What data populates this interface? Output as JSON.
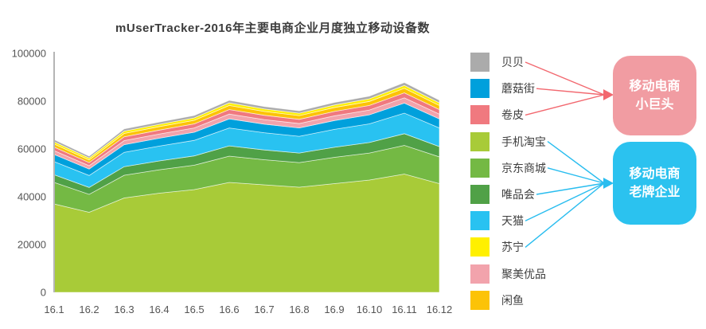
{
  "chart_data": {
    "type": "area",
    "stacked": true,
    "title": "mUserTracker-2016年主要电商企业月度独立移动设备数",
    "categories": [
      "16.1",
      "16.2",
      "16.3",
      "16.4",
      "16.5",
      "16.6",
      "16.7",
      "16.8",
      "16.9",
      "16.10",
      "16.11",
      "16.12"
    ],
    "ylim": [
      0,
      100000
    ],
    "yticks": [
      0,
      20000,
      40000,
      60000,
      80000,
      100000
    ],
    "grid": false,
    "legend_position": "right",
    "series": [
      {
        "name": "贝贝",
        "color": "#ABABAB",
        "values": [
          900,
          800,
          950,
          950,
          1000,
          1050,
          1000,
          1000,
          1050,
          1100,
          1200,
          1100
        ]
      },
      {
        "name": "蘑菇街",
        "color": "#00A0DC",
        "values": [
          3000,
          2700,
          3200,
          3300,
          3400,
          3800,
          3600,
          3500,
          3700,
          3800,
          4200,
          3800
        ]
      },
      {
        "name": "卷皮",
        "color": "#F0797F",
        "values": [
          1500,
          1300,
          1600,
          1650,
          1700,
          1900,
          1800,
          1750,
          1850,
          1900,
          2100,
          1900
        ]
      },
      {
        "name": "手机淘宝",
        "color": "#A8CB38",
        "values": [
          37000,
          33500,
          39500,
          41500,
          43000,
          46000,
          45000,
          44000,
          45500,
          47000,
          49500,
          45500
        ]
      },
      {
        "name": "京东商城",
        "color": "#74B944",
        "values": [
          9000,
          7500,
          9500,
          9800,
          10200,
          11000,
          10500,
          10300,
          11000,
          11300,
          12000,
          11200
        ]
      },
      {
        "name": "唯品会",
        "color": "#50A147",
        "values": [
          3200,
          2900,
          3600,
          3700,
          3900,
          4300,
          4100,
          4000,
          4200,
          4400,
          4900,
          4300
        ]
      },
      {
        "name": "天猫",
        "color": "#29C2F1",
        "values": [
          5500,
          5000,
          6000,
          6200,
          6500,
          7500,
          7200,
          7000,
          7500,
          7800,
          8600,
          7800
        ]
      },
      {
        "name": "苏宁",
        "color": "#FFF000",
        "values": [
          900,
          800,
          950,
          950,
          1000,
          1100,
          1050,
          1000,
          1050,
          1100,
          1200,
          1100
        ]
      },
      {
        "name": "聚美优品",
        "color": "#F2A3AC",
        "values": [
          1600,
          1400,
          1700,
          1750,
          1800,
          2000,
          1900,
          1850,
          1950,
          2000,
          2200,
          2000
        ]
      },
      {
        "name": "闲鱼",
        "color": "#FCC307",
        "values": [
          1300,
          1100,
          1400,
          1450,
          1500,
          1700,
          1600,
          1550,
          1650,
          1700,
          1900,
          1700
        ]
      }
    ],
    "stack_order": [
      "手机淘宝",
      "京东商城",
      "唯品会",
      "天猫",
      "蘑菇街",
      "聚美优品",
      "卷皮",
      "闲鱼",
      "苏宁",
      "贝贝"
    ]
  },
  "annotations": [
    {
      "lines": [
        "移动电商",
        "小巨头"
      ],
      "box_color": "#F19CA2",
      "arrow_color": "#F2686F",
      "sources": [
        "贝贝",
        "蘑菇街",
        "卷皮"
      ]
    },
    {
      "lines": [
        "移动电商",
        "老牌企业"
      ],
      "box_color": "#2BC2EF",
      "arrow_color": "#29BDEF",
      "sources": [
        "手机淘宝",
        "京东商城",
        "唯品会",
        "天猫",
        "苏宁"
      ]
    }
  ]
}
